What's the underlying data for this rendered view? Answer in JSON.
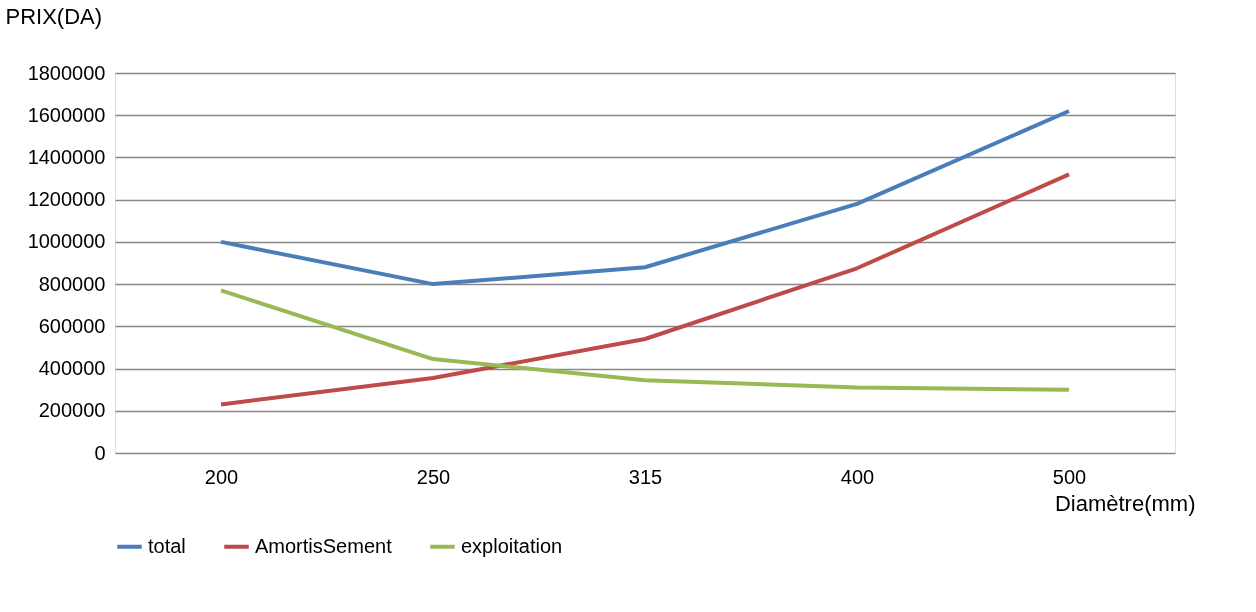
{
  "chart_data": {
    "type": "line",
    "xlabel": "Diamètre(mm)",
    "ylabel": "PRIX(DA)",
    "categories": [
      "200",
      "250",
      "315",
      "400",
      "500"
    ],
    "series": [
      {
        "name": "total",
        "color": "#4a7ebb",
        "values": [
          1000000,
          800000,
          880000,
          1180000,
          1620000
        ]
      },
      {
        "name": "AmortisSement",
        "color": "#be4b48",
        "values": [
          230000,
          355000,
          540000,
          875000,
          1320000
        ]
      },
      {
        "name": "exploitation",
        "color": "#98b954",
        "values": [
          770000,
          445000,
          345000,
          310000,
          300000
        ]
      }
    ],
    "ylim": [
      0,
      1800000
    ],
    "yticks": [
      0,
      200000,
      400000,
      600000,
      800000,
      1000000,
      1200000,
      1400000,
      1600000,
      1800000
    ],
    "grid": "y",
    "legend": "bottom",
    "marker": "none",
    "line_style": "solid"
  }
}
